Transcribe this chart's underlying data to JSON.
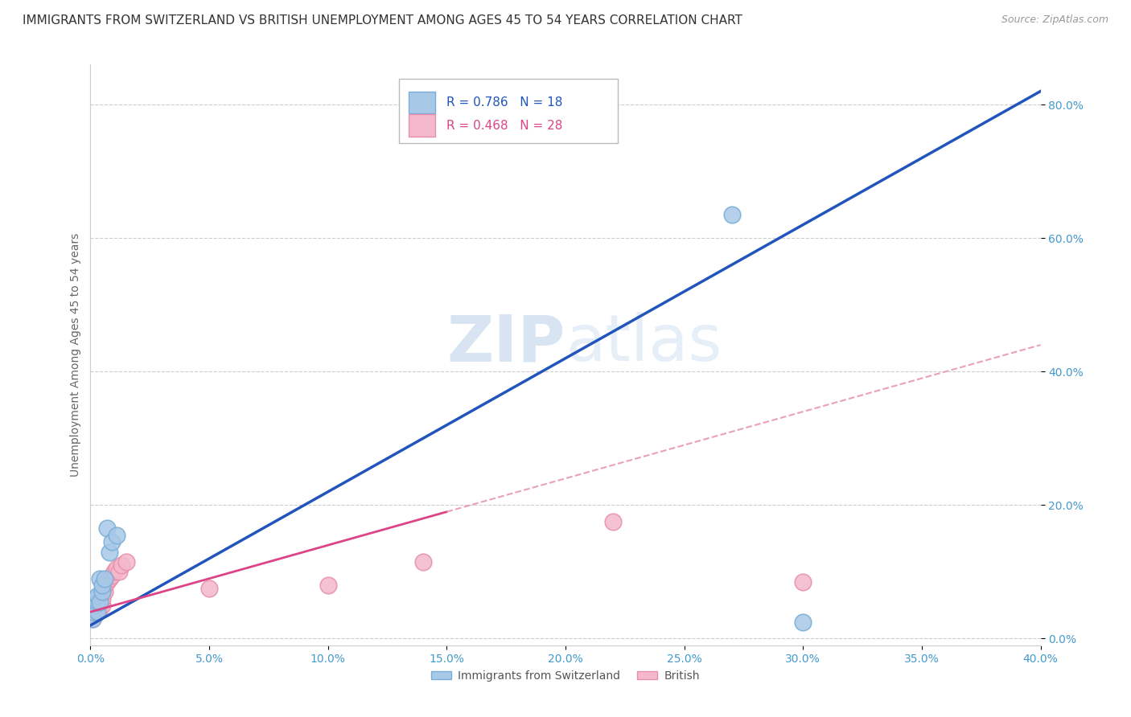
{
  "title": "IMMIGRANTS FROM SWITZERLAND VS BRITISH UNEMPLOYMENT AMONG AGES 45 TO 54 YEARS CORRELATION CHART",
  "source": "Source: ZipAtlas.com",
  "xlim": [
    0.0,
    0.4
  ],
  "ylim": [
    -0.01,
    0.86
  ],
  "swiss_color": "#a8c8e8",
  "swiss_edge_color": "#7aaed6",
  "british_color": "#f4b8cc",
  "british_edge_color": "#e890aa",
  "swiss_line_color": "#2255bb",
  "british_line_color": "#dd4488",
  "british_dash_color": "#e8a0bb",
  "watermark_color": "#d0e4f4",
  "background_color": "#ffffff",
  "grid_color": "#cccccc",
  "tick_color": "#4499cc",
  "title_fontsize": 11,
  "axis_label_fontsize": 10,
  "tick_fontsize": 10,
  "swiss_x": [
    0.001,
    0.001,
    0.002,
    0.002,
    0.003,
    0.003,
    0.003,
    0.004,
    0.004,
    0.005,
    0.005,
    0.006,
    0.007,
    0.008,
    0.009,
    0.011,
    0.27,
    0.3
  ],
  "swiss_y": [
    0.03,
    0.04,
    0.05,
    0.06,
    0.04,
    0.055,
    0.065,
    0.055,
    0.09,
    0.07,
    0.08,
    0.09,
    0.165,
    0.13,
    0.145,
    0.155,
    0.635,
    0.025
  ],
  "british_x": [
    0.001,
    0.001,
    0.001,
    0.002,
    0.002,
    0.002,
    0.002,
    0.003,
    0.003,
    0.003,
    0.003,
    0.004,
    0.004,
    0.004,
    0.005,
    0.005,
    0.005,
    0.006,
    0.006,
    0.007,
    0.008,
    0.009,
    0.01,
    0.011,
    0.012,
    0.013,
    0.015,
    0.05,
    0.1,
    0.14,
    0.22,
    0.3
  ],
  "british_y": [
    0.03,
    0.035,
    0.04,
    0.035,
    0.04,
    0.04,
    0.05,
    0.04,
    0.045,
    0.05,
    0.055,
    0.045,
    0.055,
    0.06,
    0.05,
    0.06,
    0.07,
    0.07,
    0.08,
    0.085,
    0.09,
    0.095,
    0.1,
    0.105,
    0.1,
    0.11,
    0.115,
    0.075,
    0.08,
    0.115,
    0.175,
    0.085
  ]
}
